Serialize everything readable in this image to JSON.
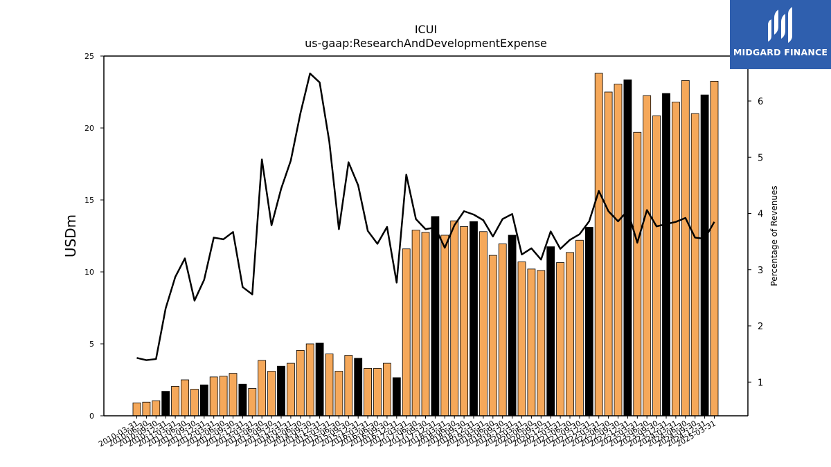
{
  "chart_data": {
    "type": "bar",
    "title": "ICUI",
    "subtitle": "us-gaap:ResearchAndDevelopmentExpense",
    "ylabel": "USDm",
    "y2label": "Percentage of Revenues",
    "ylim": [
      0,
      25
    ],
    "y2lim": [
      0.4,
      6.8
    ],
    "yticks": [
      0,
      5,
      10,
      15,
      20,
      25
    ],
    "y2ticks": [
      1,
      2,
      3,
      4,
      5,
      6
    ],
    "categories": [
      "2010-03-31",
      "2010-06-30",
      "2010-09-30",
      "2010-12-31",
      "2011-03-31",
      "2011-06-30",
      "2011-09-30",
      "2011-12-31",
      "2012-03-31",
      "2012-06-30",
      "2012-09-30",
      "2012-12-31",
      "2013-03-31",
      "2013-06-30",
      "2013-09-30",
      "2013-12-31",
      "2014-03-31",
      "2014-06-30",
      "2014-09-30",
      "2014-12-31",
      "2015-03-31",
      "2015-06-30",
      "2015-09-30",
      "2015-12-31",
      "2016-03-31",
      "2016-06-30",
      "2016-09-30",
      "2016-12-31",
      "2017-03-31",
      "2017-06-30",
      "2017-09-30",
      "2017-12-31",
      "2018-03-31",
      "2018-06-30",
      "2018-09-30",
      "2018-12-31",
      "2019-03-31",
      "2019-06-30",
      "2019-09-30",
      "2019-12-31",
      "2020-03-31",
      "2020-06-30",
      "2020-09-30",
      "2020-12-31",
      "2021-03-31",
      "2021-06-30",
      "2021-09-30",
      "2021-12-31",
      "2022-03-31",
      "2022-06-30",
      "2022-09-30",
      "2022-12-31",
      "2023-03-31",
      "2023-06-30",
      "2023-09-30",
      "2023-12-31",
      "2024-03-31",
      "2024-06-30",
      "2024-09-30",
      "2024-12-31",
      "2025-03-31"
    ],
    "series": [
      {
        "values": [
          0.9,
          0.95,
          1.05,
          1.7,
          2.05,
          2.5,
          1.85,
          2.15,
          2.7,
          2.75,
          2.95,
          2.2,
          1.9,
          3.85,
          3.1,
          3.45,
          3.65,
          4.55,
          5.0,
          5.05,
          4.3,
          3.1,
          4.2,
          4.0,
          3.3,
          3.3,
          3.65,
          2.65,
          11.6,
          12.9,
          12.75,
          13.85,
          12.55,
          13.55,
          13.15,
          13.5,
          12.8,
          11.15,
          11.95,
          12.55,
          10.7,
          10.2,
          10.1,
          11.75,
          10.65,
          11.35,
          12.2,
          13.1,
          23.8,
          22.5,
          23.05,
          23.35,
          19.7,
          22.25,
          20.85,
          22.4,
          21.8,
          23.3,
          21.0,
          22.3,
          23.25
        ],
        "highlight": [
          false,
          false,
          false,
          true,
          false,
          false,
          false,
          true,
          false,
          false,
          false,
          true,
          false,
          false,
          false,
          true,
          false,
          false,
          false,
          true,
          false,
          false,
          false,
          true,
          false,
          false,
          false,
          true,
          false,
          false,
          false,
          true,
          false,
          false,
          false,
          true,
          false,
          false,
          false,
          true,
          false,
          false,
          false,
          true,
          false,
          false,
          false,
          true,
          false,
          false,
          false,
          true,
          false,
          false,
          false,
          true,
          false,
          false,
          false,
          true,
          false
        ],
        "color": "#f5a85a",
        "highlight_color": "#000000"
      },
      {
        "axis": "right",
        "type": "line",
        "color": "#000000",
        "values": [
          1.43,
          1.39,
          1.41,
          2.31,
          2.87,
          3.2,
          2.45,
          2.82,
          3.57,
          3.54,
          3.67,
          2.69,
          2.56,
          4.96,
          3.79,
          4.44,
          4.94,
          5.78,
          6.49,
          6.33,
          5.28,
          3.72,
          4.91,
          4.5,
          3.69,
          3.46,
          3.76,
          2.77,
          4.69,
          3.9,
          3.72,
          3.75,
          3.39,
          3.79,
          4.04,
          3.98,
          3.88,
          3.59,
          3.9,
          3.99,
          3.27,
          3.38,
          3.18,
          3.68,
          3.37,
          3.53,
          3.63,
          3.86,
          4.4,
          4.04,
          3.86,
          4.05,
          3.48,
          4.06,
          3.77,
          3.81,
          3.85,
          3.92,
          3.57,
          3.55,
          3.85
        ]
      }
    ]
  },
  "logo": {
    "text": "MIDGARD FINANCE",
    "icon": "midgard-m-logo-icon",
    "background": "#2f5fae"
  }
}
